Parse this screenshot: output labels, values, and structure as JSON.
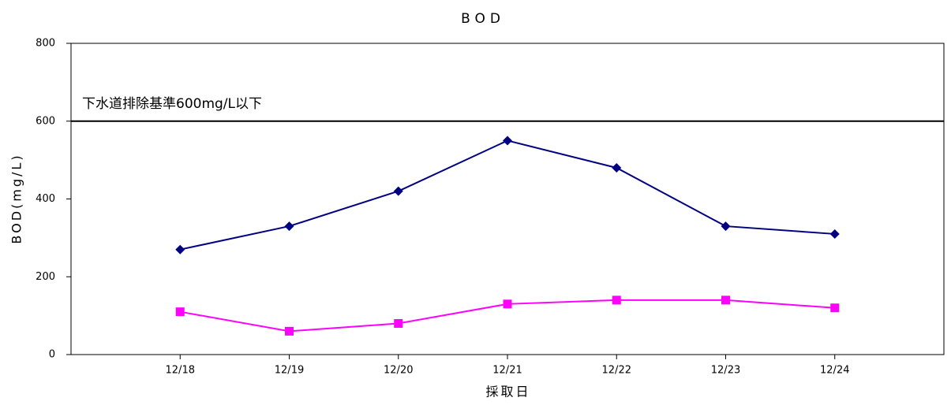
{
  "chart_data": {
    "type": "line",
    "title": "BOD",
    "x_label": "採取日",
    "y_label": "BOD(mg/L)",
    "categories": [
      "12/18",
      "12/19",
      "12/20",
      "12/21",
      "12/22",
      "12/23",
      "12/24"
    ],
    "series": [
      {
        "color": "#000080",
        "marker": "diamond",
        "values": [
          270,
          330,
          420,
          550,
          480,
          330,
          310
        ]
      },
      {
        "color": "#ff00ff",
        "marker": "square",
        "values": [
          110,
          60,
          80,
          130,
          140,
          140,
          120
        ]
      }
    ],
    "reference_line": {
      "value": 600,
      "label": "下水道排除基準600mg/L以下"
    },
    "ylim": [
      0,
      800
    ],
    "yticks": [
      0,
      200,
      400,
      600,
      800
    ],
    "grid": false
  }
}
